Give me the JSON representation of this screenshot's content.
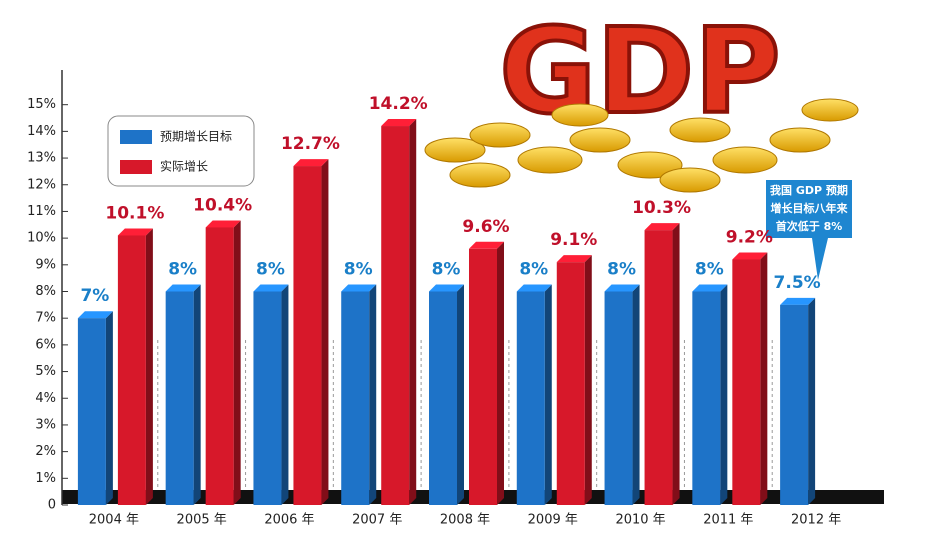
{
  "chart_data": {
    "type": "bar",
    "categories": [
      "2004 年",
      "2005 年",
      "2006 年",
      "2007 年",
      "2008 年",
      "2009 年",
      "2010 年",
      "2011 年",
      "2012 年"
    ],
    "series": [
      {
        "name": "预期增长目标",
        "color": "#1e73c8",
        "values": [
          7,
          8,
          8,
          8,
          8,
          8,
          8,
          8,
          7.5
        ],
        "value_labels": [
          "7%",
          "8%",
          "8%",
          "8%",
          "8%",
          "8%",
          "8%",
          "8%",
          "7.5%"
        ]
      },
      {
        "name": "实际增长",
        "color": "#d7182a",
        "values": [
          10.1,
          10.4,
          12.7,
          14.2,
          9.6,
          9.1,
          10.3,
          9.2,
          null
        ],
        "value_labels": [
          "10.1%",
          "10.4%",
          "12.7%",
          "14.2%",
          "9.6%",
          "9.1%",
          "10.3%",
          "9.2%",
          null
        ]
      }
    ],
    "ylim": [
      0,
      16
    ],
    "yticks": [
      0,
      {
        "value": 1,
        "label": "1%"
      },
      {
        "value": 2,
        "label": "2%"
      },
      {
        "value": 3,
        "label": "3%"
      },
      {
        "value": 4,
        "label": "4%"
      },
      {
        "value": 5,
        "label": "5%"
      },
      {
        "value": 6,
        "label": "6%"
      },
      {
        "value": 7,
        "label": "7%"
      },
      {
        "value": 8,
        "label": "8%"
      },
      {
        "value": 9,
        "label": "9%"
      },
      {
        "value": 10,
        "label": "10%"
      },
      {
        "value": 11,
        "label": "11%"
      },
      {
        "value": 12,
        "label": "12%"
      },
      {
        "value": 13,
        "label": "13%"
      },
      {
        "value": 14,
        "label": "14%"
      },
      {
        "value": 15,
        "label": "15%"
      }
    ],
    "graphic_text": "GDP",
    "annotation": [
      "我国 GDP 预期",
      "增长目标八年来",
      "首次低于 8%"
    ]
  }
}
